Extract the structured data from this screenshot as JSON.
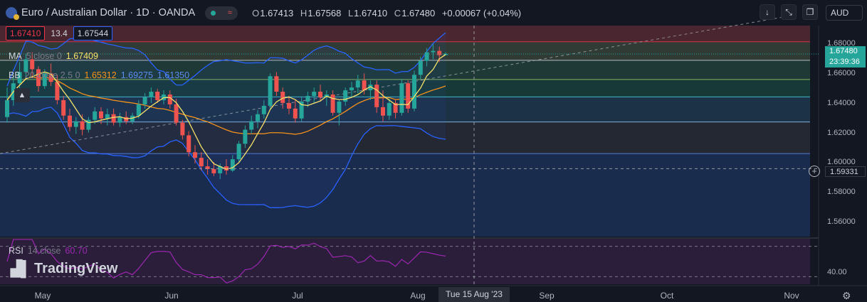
{
  "header": {
    "title": "Euro / Australian Dollar · 1D · OANDA",
    "ohlc": [
      {
        "k": "O",
        "v": "1.67413"
      },
      {
        "k": "H",
        "v": "1.67568"
      },
      {
        "k": "L",
        "v": "1.67410"
      },
      {
        "k": "C",
        "v": "1.67480"
      }
    ],
    "change": "+0.00067 (+0.04%)",
    "currency": "AUD"
  },
  "quote": {
    "sell": "1.67410",
    "spread": "13.4",
    "buy": "1.67544"
  },
  "indicators": {
    "ma": {
      "name": "MA",
      "params": "5 close 0",
      "value": "1.67409",
      "color": "#f7e26b"
    },
    "bb": {
      "name": "BB",
      "params": "20 close 2.5 0",
      "basis": "1.65312",
      "upper": "1.69275",
      "lower": "1.61350",
      "basis_color": "#f7931a",
      "band_color": "#2962ff"
    },
    "rsi": {
      "name": "RSI",
      "params": "14 close",
      "value": "60.70",
      "color": "#9c27b0"
    }
  },
  "price_axis": {
    "labels": [
      "1.68000",
      "1.66000",
      "1.64000",
      "1.62000",
      "1.60000",
      "1.58000",
      "1.56000"
    ],
    "last_price": "1.67480",
    "countdown": "23:39:36",
    "crosshair_price": "1.59331"
  },
  "rsi_axis": {
    "label": "40.00"
  },
  "time_axis": {
    "labels": [
      "May",
      "Jun",
      "Jul",
      "Aug",
      "Sep",
      "Oct",
      "Nov"
    ],
    "crosshair_date": "Tue 15 Aug '23"
  },
  "logo": {
    "text": "TradingView"
  },
  "colors": {
    "up": "#26a69a",
    "down": "#ef5350",
    "background": "#131722"
  },
  "chart_data": {
    "type": "candlestick",
    "symbol": "EURAUD",
    "interval": "1D",
    "ylim": [
      1.545,
      1.695
    ],
    "levels": [
      1.6835,
      1.6703,
      1.6567,
      1.6443,
      1.6265,
      1.604
    ],
    "candles": [
      {
        "o": 1.63,
        "h": 1.651,
        "l": 1.626,
        "c": 1.642
      },
      {
        "o": 1.642,
        "h": 1.658,
        "l": 1.638,
        "c": 1.654
      },
      {
        "o": 1.654,
        "h": 1.669,
        "l": 1.649,
        "c": 1.662
      },
      {
        "o": 1.662,
        "h": 1.675,
        "l": 1.657,
        "c": 1.671
      },
      {
        "o": 1.671,
        "h": 1.676,
        "l": 1.658,
        "c": 1.664
      },
      {
        "o": 1.664,
        "h": 1.666,
        "l": 1.648,
        "c": 1.652
      },
      {
        "o": 1.652,
        "h": 1.664,
        "l": 1.65,
        "c": 1.661
      },
      {
        "o": 1.661,
        "h": 1.668,
        "l": 1.652,
        "c": 1.655
      },
      {
        "o": 1.655,
        "h": 1.66,
        "l": 1.639,
        "c": 1.642
      },
      {
        "o": 1.642,
        "h": 1.645,
        "l": 1.628,
        "c": 1.631
      },
      {
        "o": 1.631,
        "h": 1.636,
        "l": 1.62,
        "c": 1.623
      },
      {
        "o": 1.623,
        "h": 1.63,
        "l": 1.618,
        "c": 1.627
      },
      {
        "o": 1.627,
        "h": 1.632,
        "l": 1.617,
        "c": 1.621
      },
      {
        "o": 1.621,
        "h": 1.63,
        "l": 1.619,
        "c": 1.628
      },
      {
        "o": 1.628,
        "h": 1.637,
        "l": 1.625,
        "c": 1.634
      },
      {
        "o": 1.634,
        "h": 1.637,
        "l": 1.625,
        "c": 1.629
      },
      {
        "o": 1.629,
        "h": 1.636,
        "l": 1.624,
        "c": 1.632
      },
      {
        "o": 1.632,
        "h": 1.636,
        "l": 1.624,
        "c": 1.626
      },
      {
        "o": 1.626,
        "h": 1.633,
        "l": 1.623,
        "c": 1.63
      },
      {
        "o": 1.63,
        "h": 1.634,
        "l": 1.625,
        "c": 1.627
      },
      {
        "o": 1.627,
        "h": 1.633,
        "l": 1.625,
        "c": 1.631
      },
      {
        "o": 1.631,
        "h": 1.642,
        "l": 1.629,
        "c": 1.639
      },
      {
        "o": 1.639,
        "h": 1.647,
        "l": 1.636,
        "c": 1.644
      },
      {
        "o": 1.644,
        "h": 1.651,
        "l": 1.64,
        "c": 1.648
      },
      {
        "o": 1.648,
        "h": 1.65,
        "l": 1.64,
        "c": 1.642
      },
      {
        "o": 1.642,
        "h": 1.649,
        "l": 1.639,
        "c": 1.646
      },
      {
        "o": 1.646,
        "h": 1.649,
        "l": 1.636,
        "c": 1.639
      },
      {
        "o": 1.639,
        "h": 1.643,
        "l": 1.624,
        "c": 1.626
      },
      {
        "o": 1.626,
        "h": 1.628,
        "l": 1.614,
        "c": 1.617
      },
      {
        "o": 1.617,
        "h": 1.62,
        "l": 1.602,
        "c": 1.605
      },
      {
        "o": 1.605,
        "h": 1.61,
        "l": 1.597,
        "c": 1.601
      },
      {
        "o": 1.601,
        "h": 1.605,
        "l": 1.592,
        "c": 1.595
      },
      {
        "o": 1.595,
        "h": 1.6,
        "l": 1.589,
        "c": 1.593
      },
      {
        "o": 1.593,
        "h": 1.598,
        "l": 1.588,
        "c": 1.59
      },
      {
        "o": 1.59,
        "h": 1.597,
        "l": 1.586,
        "c": 1.595
      },
      {
        "o": 1.595,
        "h": 1.6,
        "l": 1.589,
        "c": 1.592
      },
      {
        "o": 1.592,
        "h": 1.603,
        "l": 1.591,
        "c": 1.6
      },
      {
        "o": 1.6,
        "h": 1.613,
        "l": 1.598,
        "c": 1.611
      },
      {
        "o": 1.611,
        "h": 1.624,
        "l": 1.608,
        "c": 1.621
      },
      {
        "o": 1.621,
        "h": 1.631,
        "l": 1.618,
        "c": 1.627
      },
      {
        "o": 1.627,
        "h": 1.635,
        "l": 1.622,
        "c": 1.632
      },
      {
        "o": 1.632,
        "h": 1.642,
        "l": 1.629,
        "c": 1.638
      },
      {
        "o": 1.638,
        "h": 1.661,
        "l": 1.635,
        "c": 1.659
      },
      {
        "o": 1.659,
        "h": 1.662,
        "l": 1.645,
        "c": 1.648
      },
      {
        "o": 1.648,
        "h": 1.651,
        "l": 1.636,
        "c": 1.64
      },
      {
        "o": 1.64,
        "h": 1.645,
        "l": 1.632,
        "c": 1.636
      },
      {
        "o": 1.636,
        "h": 1.642,
        "l": 1.626,
        "c": 1.629
      },
      {
        "o": 1.629,
        "h": 1.644,
        "l": 1.627,
        "c": 1.641
      },
      {
        "o": 1.641,
        "h": 1.648,
        "l": 1.637,
        "c": 1.645
      },
      {
        "o": 1.645,
        "h": 1.651,
        "l": 1.64,
        "c": 1.648
      },
      {
        "o": 1.648,
        "h": 1.653,
        "l": 1.641,
        "c": 1.644
      },
      {
        "o": 1.644,
        "h": 1.649,
        "l": 1.638,
        "c": 1.646
      },
      {
        "o": 1.646,
        "h": 1.649,
        "l": 1.631,
        "c": 1.633
      },
      {
        "o": 1.633,
        "h": 1.642,
        "l": 1.624,
        "c": 1.641
      },
      {
        "o": 1.641,
        "h": 1.651,
        "l": 1.638,
        "c": 1.649
      },
      {
        "o": 1.649,
        "h": 1.655,
        "l": 1.644,
        "c": 1.651
      },
      {
        "o": 1.651,
        "h": 1.66,
        "l": 1.647,
        "c": 1.656
      },
      {
        "o": 1.656,
        "h": 1.661,
        "l": 1.646,
        "c": 1.649
      },
      {
        "o": 1.649,
        "h": 1.656,
        "l": 1.642,
        "c": 1.653
      },
      {
        "o": 1.653,
        "h": 1.656,
        "l": 1.633,
        "c": 1.637
      },
      {
        "o": 1.637,
        "h": 1.649,
        "l": 1.627,
        "c": 1.631
      },
      {
        "o": 1.631,
        "h": 1.643,
        "l": 1.628,
        "c": 1.64
      },
      {
        "o": 1.64,
        "h": 1.642,
        "l": 1.629,
        "c": 1.633
      },
      {
        "o": 1.633,
        "h": 1.657,
        "l": 1.631,
        "c": 1.654
      },
      {
        "o": 1.654,
        "h": 1.656,
        "l": 1.633,
        "c": 1.636
      },
      {
        "o": 1.636,
        "h": 1.663,
        "l": 1.634,
        "c": 1.66
      },
      {
        "o": 1.66,
        "h": 1.673,
        "l": 1.657,
        "c": 1.67
      },
      {
        "o": 1.67,
        "h": 1.679,
        "l": 1.666,
        "c": 1.676
      },
      {
        "o": 1.676,
        "h": 1.682,
        "l": 1.671,
        "c": 1.677
      },
      {
        "o": 1.677,
        "h": 1.68,
        "l": 1.669,
        "c": 1.674
      },
      {
        "o": 1.674,
        "h": 1.676,
        "l": 1.674,
        "c": 1.675
      }
    ],
    "rsi_levels": [
      70,
      50,
      30
    ],
    "rsi_ylim": [
      20,
      80
    ]
  }
}
